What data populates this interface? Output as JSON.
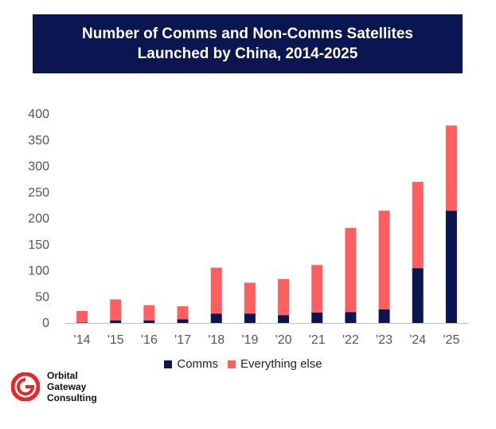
{
  "chart_data": {
    "type": "bar",
    "stacked": true,
    "title_line1": "Number of Comms and Non-Comms Satellites",
    "title_line2": "Launched by China, 2014-2025",
    "categories": [
      "'14",
      "'15",
      "'16",
      "'17",
      "'18",
      "'19",
      "'20",
      "'21",
      "'22",
      "'23",
      "'24",
      "'25"
    ],
    "series": [
      {
        "name": "Comms",
        "color": "#0b1650",
        "values": [
          1,
          5,
          5,
          7,
          18,
          18,
          15,
          20,
          21,
          26,
          105,
          215
        ]
      },
      {
        "name": "Everything else",
        "color": "#ff5f5f",
        "values": [
          22,
          40,
          29,
          25,
          88,
          59,
          69,
          91,
          161,
          189,
          165,
          163
        ]
      }
    ],
    "ylim": [
      0,
      400
    ],
    "yticks": [
      0,
      50,
      100,
      150,
      200,
      250,
      300,
      350,
      400
    ],
    "legend_position": "bottom",
    "xlabel": "",
    "ylabel": ""
  },
  "brand": {
    "line1": "Orbital",
    "line2": "Gateway",
    "line3": "Consulting",
    "logo_color": "#e8262c"
  }
}
